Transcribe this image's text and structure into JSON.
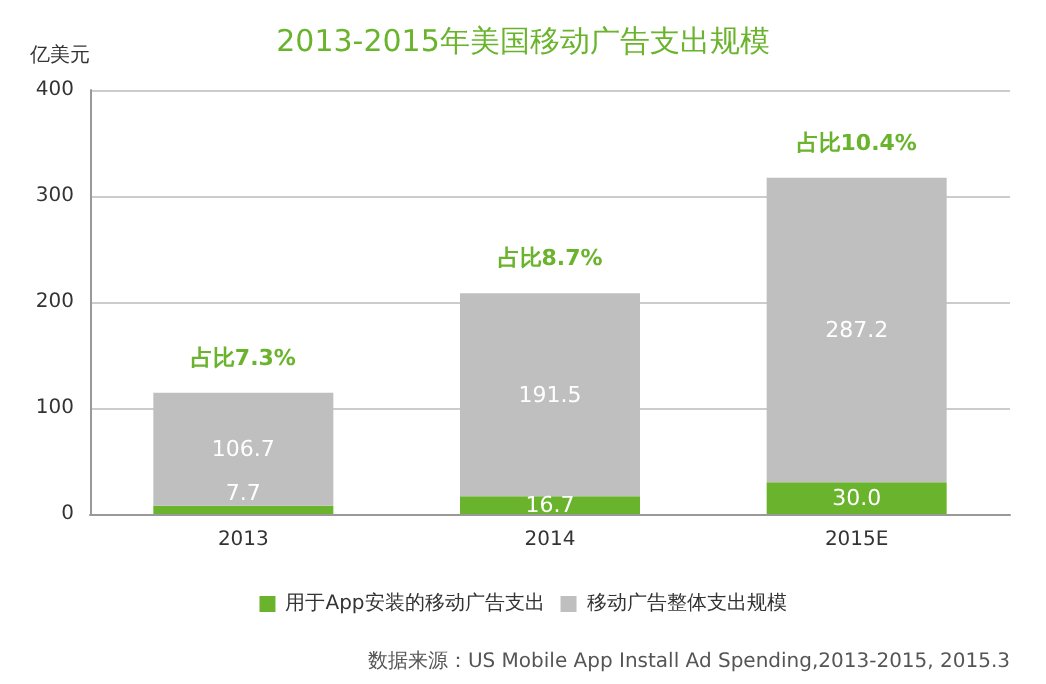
{
  "chart_data": {
    "type": "bar",
    "title": "2013-2015年美国移动广告支出规模",
    "ylabel": "亿美元",
    "categories": [
      "2013",
      "2014",
      "2015E"
    ],
    "stacked": true,
    "series": [
      {
        "name": "用于App安装的移动广告支出",
        "color": "#6ab42d",
        "values": [
          7.7,
          16.7,
          30.0
        ],
        "value_labels": [
          "7.7",
          "16.7",
          "30.0"
        ]
      },
      {
        "name": "移动广告整体支出规模",
        "color": "#bfbfbf",
        "values": [
          106.7,
          191.5,
          287.2
        ],
        "value_labels": [
          "106.7",
          "191.5",
          "287.2"
        ]
      }
    ],
    "ylim": [
      0,
      400
    ],
    "yticks": [
      0,
      100,
      200,
      300,
      400
    ],
    "grid": "y",
    "legend": "bottom",
    "annotations": [
      "占比7.3%",
      "占比8.7%",
      "占比10.4%",
      "数据来源：US Mobile App Install Ad Spending,2013-2015, 2015.3"
    ]
  }
}
